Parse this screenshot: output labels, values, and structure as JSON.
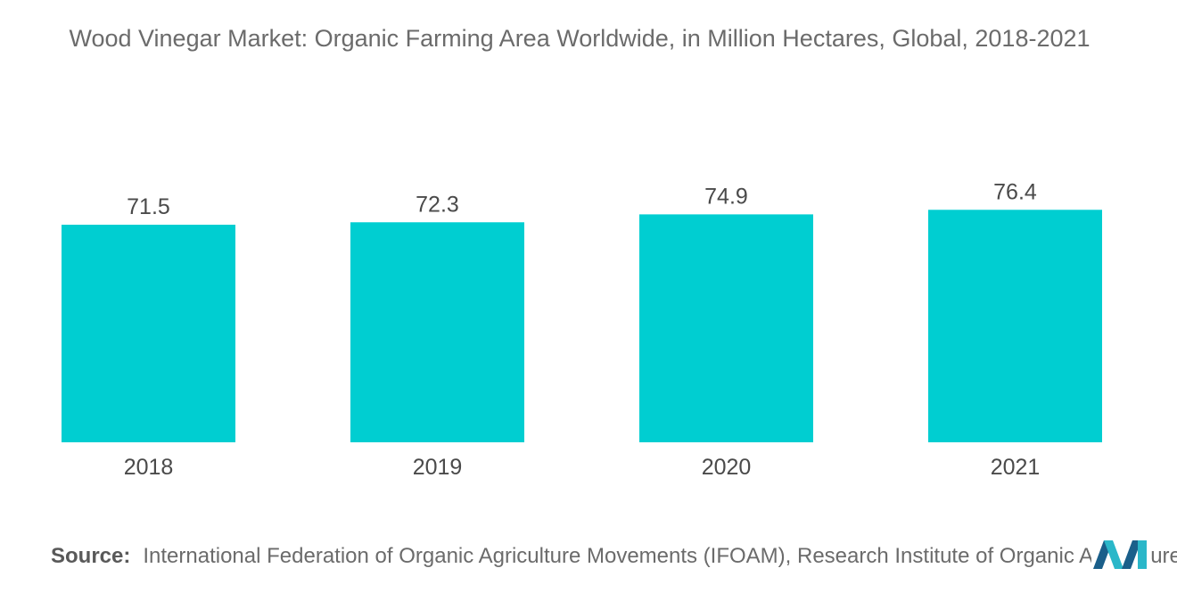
{
  "chart_data": {
    "type": "bar",
    "title": "Wood Vinegar Market: Organic Farming Area Worldwide, in Million Hectares, Global, 2018-2021",
    "categories": [
      "2018",
      "2019",
      "2020",
      "2021"
    ],
    "values": [
      71.5,
      72.3,
      74.9,
      76.4
    ],
    "xlabel": "",
    "ylabel": "",
    "grid": false,
    "bar_color": "#00CED1"
  },
  "source": {
    "label": "Source:",
    "text": "International Federation of Organic Agriculture Movements (IFOAM), Research Institute of Organic Agriculture"
  },
  "logo": {
    "icon": "mordor-intelligence-logo",
    "colors": [
      "#1a5f8a",
      "#2ab7c9"
    ]
  }
}
